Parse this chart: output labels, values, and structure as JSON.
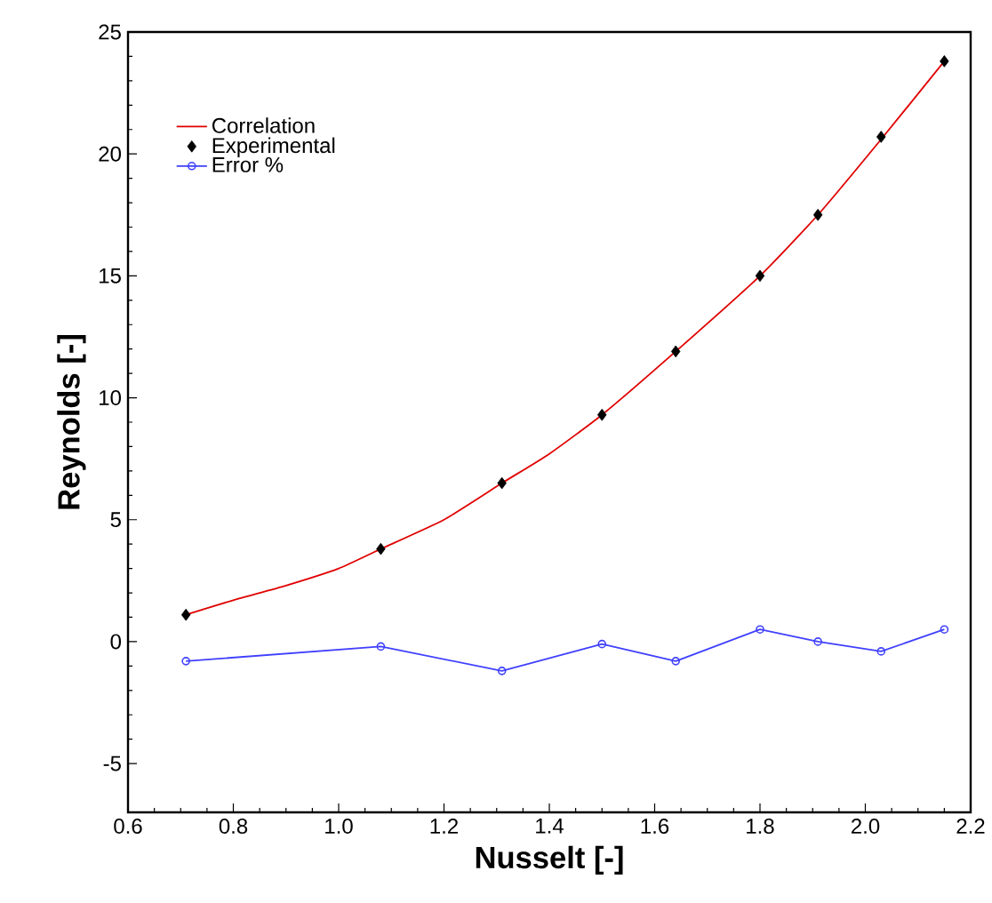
{
  "chart_data": {
    "type": "line",
    "xlabel": "Nusselt [-]",
    "ylabel": "Reynolds [-]",
    "xlim": [
      0.6,
      2.2
    ],
    "xticks": [
      {
        "value": 0.6,
        "label": "0.6"
      },
      {
        "value": 0.8,
        "label": "0.8"
      },
      {
        "value": 1.0,
        "label": "1.0"
      },
      {
        "value": 1.2,
        "label": "1.2"
      },
      {
        "value": 1.4,
        "label": "1.4"
      },
      {
        "value": 1.6,
        "label": "1.6"
      },
      {
        "value": 1.8,
        "label": "1.8"
      },
      {
        "value": 2.0,
        "label": "2.0"
      },
      {
        "value": 2.2,
        "label": "2.2"
      }
    ],
    "ylim": [
      -7,
      25
    ],
    "yticks": [
      -5,
      0,
      5,
      10,
      15,
      20,
      25
    ],
    "grid": false,
    "legend": "top left",
    "series": [
      {
        "name": "Correlation",
        "color": "#e00000",
        "marker": "none",
        "line_style": "solid",
        "x": [
          0.71,
          0.8,
          0.9,
          1.0,
          1.08,
          1.2,
          1.31,
          1.4,
          1.5,
          1.64,
          1.8,
          1.91,
          2.03,
          2.15
        ],
        "values": [
          1.1,
          1.7,
          2.3,
          3.0,
          3.8,
          5.0,
          6.5,
          7.7,
          9.3,
          11.9,
          15.0,
          17.5,
          20.6,
          23.8
        ]
      },
      {
        "name": "Experimental",
        "type": "scatter",
        "color": "#000000",
        "marker": "diamond",
        "x": [
          0.71,
          1.08,
          1.31,
          1.5,
          1.64,
          1.8,
          1.91,
          2.03,
          2.15
        ],
        "values": [
          1.1,
          3.8,
          6.5,
          9.3,
          11.9,
          15.0,
          17.5,
          20.7,
          23.8
        ]
      },
      {
        "name": "Error %",
        "color": "#4040ff",
        "marker": "circle",
        "line_style": "solid",
        "x": [
          0.71,
          1.08,
          1.31,
          1.5,
          1.64,
          1.8,
          1.91,
          2.03,
          2.15
        ],
        "values": [
          -0.8,
          -0.2,
          -1.2,
          -0.1,
          -0.8,
          0.5,
          0.0,
          -0.4,
          0.5
        ]
      }
    ]
  }
}
